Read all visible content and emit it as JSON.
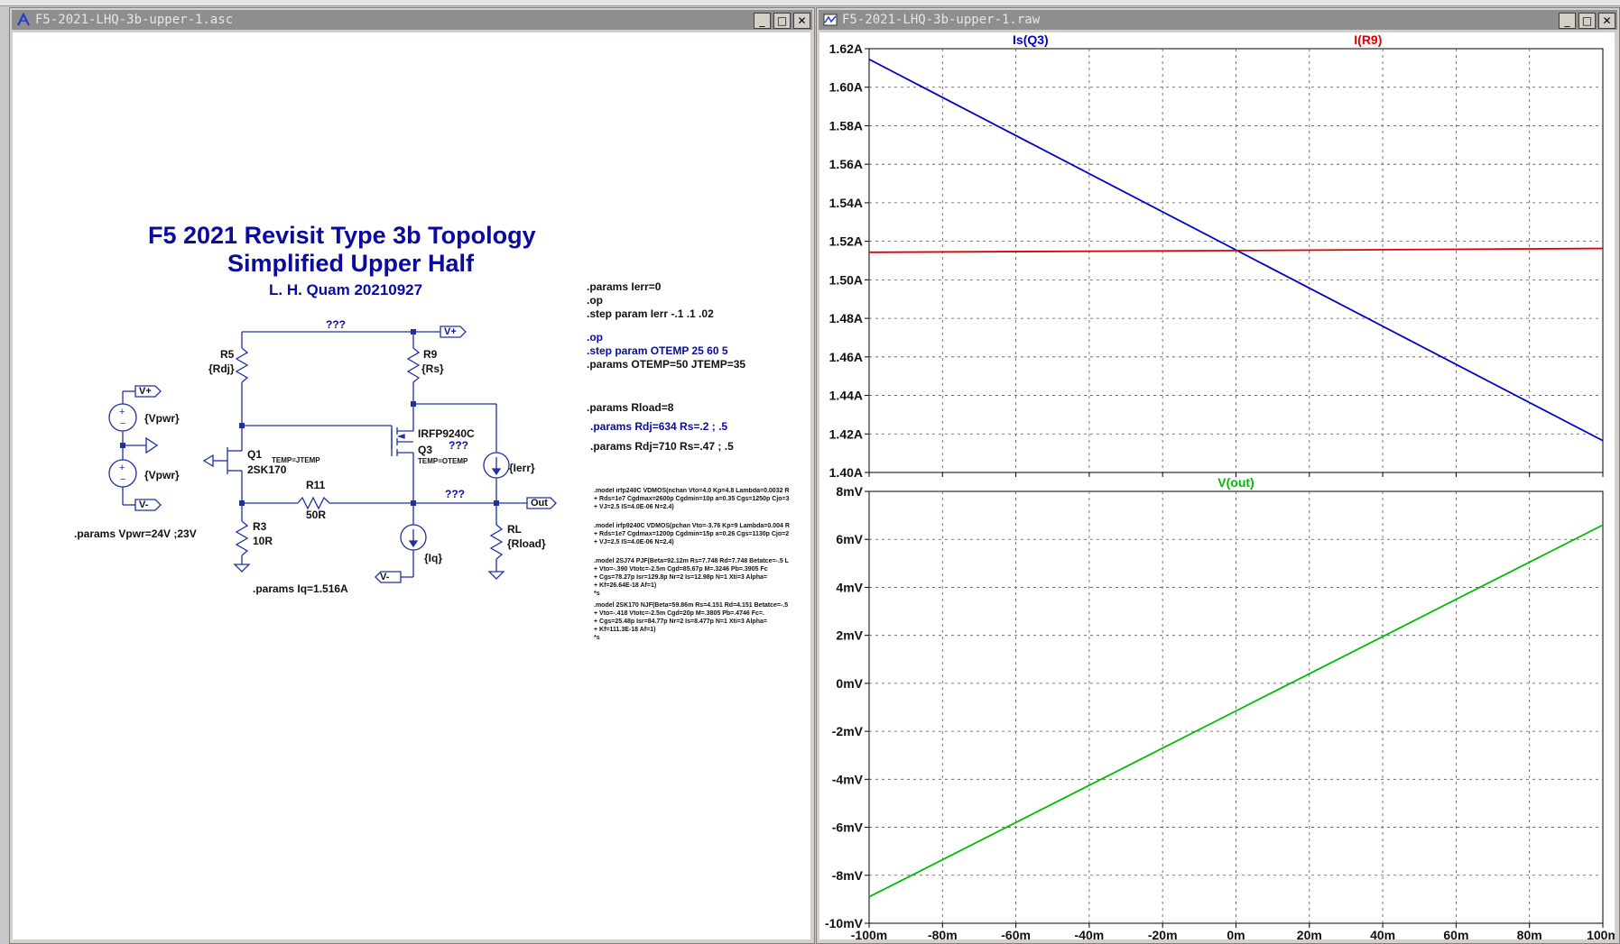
{
  "schematic_window": {
    "title": "F5-2021-LHQ-3b-upper-1.asc",
    "heading": {
      "line1": "F5 2021 Revisit Type 3b Topology",
      "line2": "Simplified Upper Half",
      "author": "L. H. Quam  20210927"
    },
    "components": {
      "r5_name": "R5",
      "r5_value": "{Rdj}",
      "r9_name": "R9",
      "r9_value": "{Rs}",
      "q1_name": "Q1",
      "q1_model": "2SK170",
      "q1_temp": "TEMP=JTEMP",
      "q3_name": "Q3",
      "q3_model": "IRFP9240C",
      "q3_temp": "TEMP=OTEMP",
      "r11_name": "R11",
      "r11_value": "50R",
      "r3_name": "R3",
      "r3_value": "10R",
      "rl_name": "RL",
      "rl_value": "{Rload}",
      "ierr_value": "{Ierr}",
      "iq_value": "{Iq}",
      "vpwr_top": "{Vpwr}",
      "vpwr_bottom": "{Vpwr}",
      "flag_vplus": "V+",
      "flag_vminus": "V-",
      "flag_out": "Out",
      "unknown_top": "???",
      "unknown_q3": "???",
      "unknown_out": "???"
    },
    "directives": {
      "vpwr": ".params Vpwr=24V ;23V",
      "iq": ".params Iq=1.516A",
      "ierr": ".params Ierr=0",
      "op1": ".op",
      "step_ierr": ".step param Ierr -.1 .1 .02",
      "op2": ".op",
      "step_otemp": ".step param OTEMP 25 60 5",
      "temps": ".params OTEMP=50 JTEMP=35",
      "rload": ".params Rload=8",
      "rdj1": ".params Rdj=634 Rs=.2 ; .5",
      "rdj2": ".params Rdj=710 Rs=.47 ; .5"
    },
    "models": [
      ".model irfp240C VDMOS(nchan Vto=4.0 Kp=4.8 Lambda=0.0032 R",
      "+ Rds=1e7 Cgdmax=2600p Cgdmin=10p a=0.35 Cgs=1250p Cjo=3",
      "+ VJ=2.5 IS=4.0E-06 N=2.4)",
      ".model irfp9240C VDMOS(pchan Vto=-3.76 Kp=9 Lambda=0.004 R",
      "+ Rds=1e7 Cgdmax=1200p Cgdmin=15p a=0.26 Cgs=1130p Cjo=2",
      "+ VJ=2.5 IS=4.0E-06 N=2.4)",
      ".model 2SJ74   PJF(Beta=92.12m Rs=7.748 Rd=7.748 Betatce=-.5 L",
      "+           Vto=-.390 Vtotc=-2.5m Cgd=85.67p M=.3246 Pb=.3905 Fc",
      "+           Cgs=78.27p Isr=129.8p Nr=2 Is=12.98p N=1 Xti=3 Alpha=",
      "+           Kf=26.64E-18 Af=1)",
      "*s",
      ".model 2SK170  NJF(Beta=59.86m Rs=4.151 Rd=4.151 Betatce=-.5",
      "+           Vto=-.418 Vtotc=-2.5m Cgd=20p M=.3805 Pb=.4746 Fc=.",
      "+           Cgs=25.48p Isr=84.77p Nr=2 Is=8.477p N=1 Xti=3 Alpha=",
      "+           Kf=111.3E-18 Af=1)",
      "*s"
    ]
  },
  "waveform_window": {
    "title": "F5-2021-LHQ-3b-upper-1.raw"
  },
  "window_buttons": {
    "minimize": "_",
    "maximize": "□",
    "close": "✕"
  },
  "colors": {
    "blue": "#0000cc",
    "red": "#dd0000",
    "green": "#00bb00",
    "schematic_blue": "#0a0a9e",
    "wire": "#2030a0"
  },
  "chart_data": [
    {
      "type": "line",
      "pane": "top",
      "x": [
        -100,
        0,
        100
      ],
      "xlim": [
        -100,
        100
      ],
      "xticks": [
        "-100m",
        "-80m",
        "-60m",
        "-40m",
        "-20m",
        "0m",
        "20m",
        "40m",
        "60m",
        "80m",
        "100m"
      ],
      "ylim": [
        1.4,
        1.62
      ],
      "yticks": [
        "1.40A",
        "1.42A",
        "1.44A",
        "1.46A",
        "1.48A",
        "1.50A",
        "1.52A",
        "1.54A",
        "1.56A",
        "1.58A",
        "1.60A",
        "1.62A"
      ],
      "grid": true,
      "series": [
        {
          "name": "Is(Q3)",
          "color": "#0000cc",
          "values": [
            1.6145,
            1.5155,
            1.4165
          ]
        },
        {
          "name": "I(R9)",
          "color": "#dd0000",
          "values": [
            1.5143,
            1.5152,
            1.5163
          ]
        }
      ]
    },
    {
      "type": "line",
      "pane": "bottom",
      "x": [
        -100,
        0,
        100
      ],
      "xlim": [
        -100,
        100
      ],
      "xticks": [
        "-100m",
        "-80m",
        "-60m",
        "-40m",
        "-20m",
        "0m",
        "20m",
        "40m",
        "60m",
        "80m",
        "100m"
      ],
      "ylim": [
        -10,
        8
      ],
      "yticks": [
        "-10mV",
        "-8mV",
        "-6mV",
        "-4mV",
        "-2mV",
        "0mV",
        "2mV",
        "4mV",
        "6mV",
        "8mV"
      ],
      "grid": true,
      "series": [
        {
          "name": "V(out)",
          "color": "#00bb00",
          "values": [
            -8.9,
            -1.15,
            6.6
          ]
        }
      ]
    }
  ]
}
